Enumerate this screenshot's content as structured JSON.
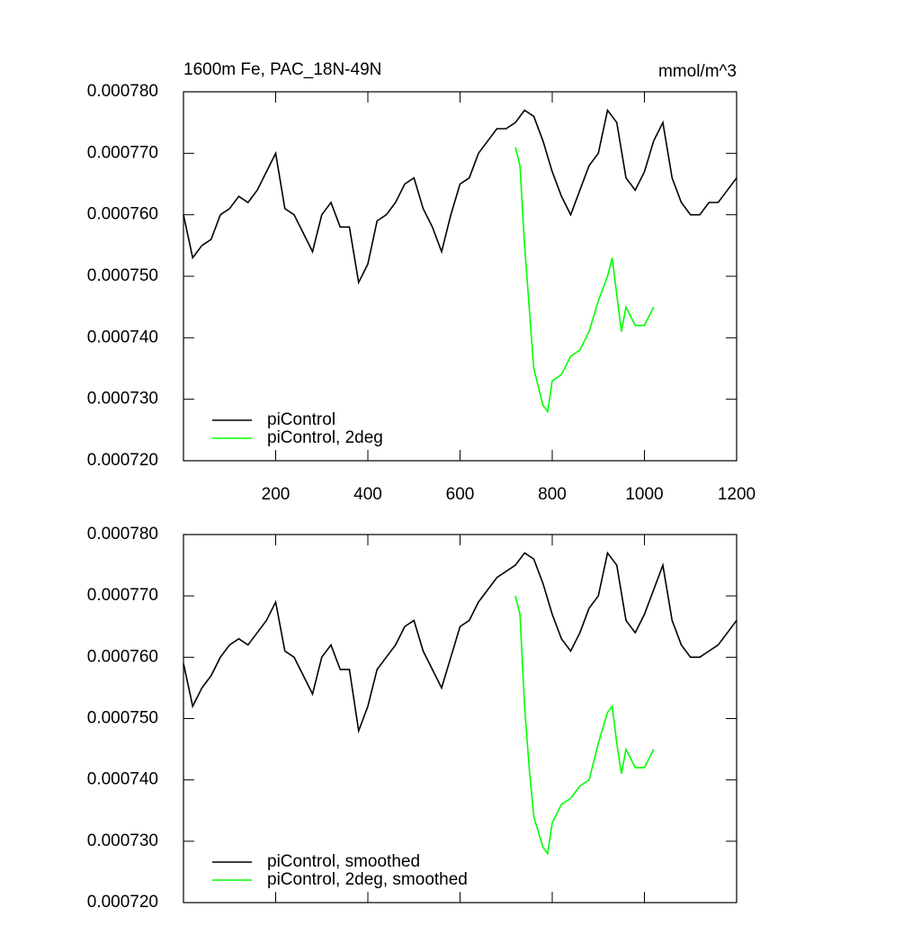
{
  "chart_data": [
    {
      "type": "line",
      "title": "1600m Fe, PAC_18N-49N",
      "units": "mmol/m^3",
      "xlim": [
        0,
        1200
      ],
      "xticks": [
        200,
        400,
        600,
        800,
        1000,
        1200
      ],
      "show_xtick_labels": true,
      "ylim": [
        0.00072,
        0.00078
      ],
      "yticks": [
        {
          "value": 0.00072,
          "label": "0.000720"
        },
        {
          "value": 0.00073,
          "label": "0.000730"
        },
        {
          "value": 0.00074,
          "label": "0.000740"
        },
        {
          "value": 0.00075,
          "label": "0.000750"
        },
        {
          "value": 0.00076,
          "label": "0.000760"
        },
        {
          "value": 0.00077,
          "label": "0.000770"
        },
        {
          "value": 0.00078,
          "label": "0.000780"
        }
      ],
      "legend": "lower left",
      "series": [
        {
          "name": "piControl",
          "color": "#000000",
          "x": [
            0,
            20,
            40,
            60,
            80,
            100,
            120,
            140,
            160,
            180,
            200,
            220,
            240,
            260,
            280,
            300,
            320,
            340,
            360,
            380,
            400,
            420,
            440,
            460,
            480,
            500,
            520,
            540,
            560,
            580,
            600,
            620,
            640,
            660,
            680,
            700,
            720,
            740,
            760,
            780,
            800,
            820,
            840,
            860,
            880,
            900,
            920,
            940,
            960,
            980,
            1000,
            1020,
            1040,
            1060,
            1080,
            1100,
            1120,
            1140,
            1160,
            1180,
            1200
          ],
          "values": [
            0.00076,
            0.000753,
            0.000755,
            0.000756,
            0.00076,
            0.000761,
            0.000763,
            0.000762,
            0.000764,
            0.000767,
            0.00077,
            0.000761,
            0.00076,
            0.000757,
            0.000754,
            0.00076,
            0.000762,
            0.000758,
            0.000758,
            0.000749,
            0.000752,
            0.000759,
            0.00076,
            0.000762,
            0.000765,
            0.000766,
            0.000761,
            0.000758,
            0.000754,
            0.00076,
            0.000765,
            0.000766,
            0.00077,
            0.000772,
            0.000774,
            0.000774,
            0.000775,
            0.000777,
            0.000776,
            0.000772,
            0.000767,
            0.000763,
            0.00076,
            0.000764,
            0.000768,
            0.00077,
            0.000777,
            0.000775,
            0.000766,
            0.000764,
            0.000767,
            0.000772,
            0.000775,
            0.000766,
            0.000762,
            0.00076,
            0.00076,
            0.000762,
            0.000762,
            0.000764,
            0.000766
          ]
        },
        {
          "name": "piControl, 2deg",
          "color": "#00ff00",
          "x": [
            720,
            730,
            740,
            750,
            760,
            780,
            790,
            800,
            820,
            840,
            860,
            880,
            900,
            920,
            930,
            940,
            950,
            960,
            980,
            1000,
            1020
          ],
          "values": [
            0.000771,
            0.000768,
            0.000755,
            0.000745,
            0.000735,
            0.000729,
            0.000728,
            0.000733,
            0.000734,
            0.000737,
            0.000738,
            0.000741,
            0.000746,
            0.00075,
            0.000753,
            0.000747,
            0.000741,
            0.000745,
            0.000742,
            0.000742,
            0.000745
          ]
        }
      ]
    },
    {
      "type": "line",
      "xlim": [
        0,
        1200
      ],
      "xticks": [
        200,
        400,
        600,
        800,
        1000,
        1200
      ],
      "show_xtick_labels": false,
      "ylim": [
        0.00072,
        0.00078
      ],
      "yticks": [
        {
          "value": 0.00072,
          "label": "0.000720"
        },
        {
          "value": 0.00073,
          "label": "0.000730"
        },
        {
          "value": 0.00074,
          "label": "0.000740"
        },
        {
          "value": 0.00075,
          "label": "0.000750"
        },
        {
          "value": 0.00076,
          "label": "0.000760"
        },
        {
          "value": 0.00077,
          "label": "0.000770"
        },
        {
          "value": 0.00078,
          "label": "0.000780"
        }
      ],
      "legend": "lower left",
      "series": [
        {
          "name": "piControl, smoothed",
          "color": "#000000",
          "x": [
            0,
            20,
            40,
            60,
            80,
            100,
            120,
            140,
            160,
            180,
            200,
            220,
            240,
            260,
            280,
            300,
            320,
            340,
            360,
            380,
            400,
            420,
            440,
            460,
            480,
            500,
            520,
            540,
            560,
            580,
            600,
            620,
            640,
            660,
            680,
            700,
            720,
            740,
            760,
            780,
            800,
            820,
            840,
            860,
            880,
            900,
            920,
            940,
            960,
            980,
            1000,
            1020,
            1040,
            1060,
            1080,
            1100,
            1120,
            1140,
            1160,
            1180,
            1200
          ],
          "values": [
            0.000759,
            0.000752,
            0.000755,
            0.000757,
            0.00076,
            0.000762,
            0.000763,
            0.000762,
            0.000764,
            0.000766,
            0.000769,
            0.000761,
            0.00076,
            0.000757,
            0.000754,
            0.00076,
            0.000762,
            0.000758,
            0.000758,
            0.000748,
            0.000752,
            0.000758,
            0.00076,
            0.000762,
            0.000765,
            0.000766,
            0.000761,
            0.000758,
            0.000755,
            0.00076,
            0.000765,
            0.000766,
            0.000769,
            0.000771,
            0.000773,
            0.000774,
            0.000775,
            0.000777,
            0.000776,
            0.000772,
            0.000767,
            0.000763,
            0.000761,
            0.000764,
            0.000768,
            0.00077,
            0.000777,
            0.000775,
            0.000766,
            0.000764,
            0.000767,
            0.000771,
            0.000775,
            0.000766,
            0.000762,
            0.00076,
            0.00076,
            0.000761,
            0.000762,
            0.000764,
            0.000766
          ]
        },
        {
          "name": "piControl, 2deg, smoothed",
          "color": "#00ff00",
          "x": [
            720,
            730,
            740,
            750,
            760,
            780,
            790,
            800,
            820,
            840,
            860,
            880,
            900,
            920,
            930,
            940,
            950,
            960,
            980,
            1000,
            1020
          ],
          "values": [
            0.00077,
            0.000767,
            0.000752,
            0.000742,
            0.000734,
            0.000729,
            0.000728,
            0.000733,
            0.000736,
            0.000737,
            0.000739,
            0.00074,
            0.000746,
            0.000751,
            0.000752,
            0.000746,
            0.000741,
            0.000745,
            0.000742,
            0.000742,
            0.000745
          ]
        }
      ]
    }
  ]
}
